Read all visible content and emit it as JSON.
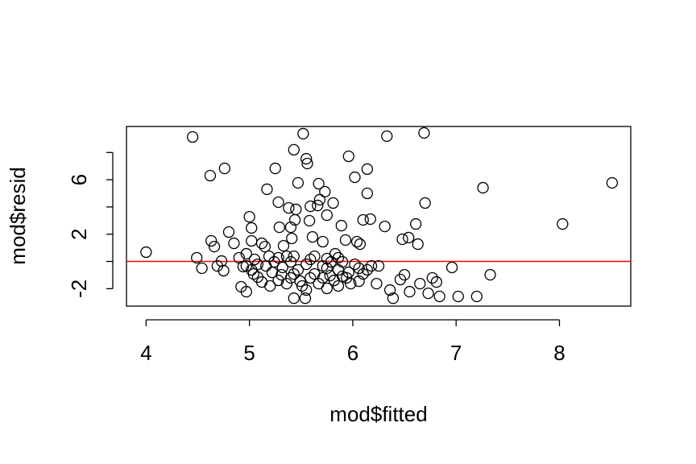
{
  "chart_data": {
    "type": "scatter",
    "x_label": "mod$fitted",
    "y_label": "mod$resid",
    "x": [
      4.0,
      4.45,
      4.62,
      4.76,
      4.49,
      4.54,
      4.63,
      4.66,
      4.69,
      4.73,
      4.8,
      4.75,
      4.85,
      4.9,
      4.94,
      4.92,
      4.97,
      5.0,
      5.02,
      5.02,
      4.97,
      5.02,
      5.05,
      5.08,
      5.12,
      5.15,
      5.17,
      5.19,
      5.22,
      5.25,
      5.28,
      5.29,
      5.31,
      5.33,
      5.36,
      5.38,
      5.4,
      5.41,
      5.43,
      5.43,
      5.44,
      5.45,
      5.47,
      5.49,
      5.52,
      5.54,
      5.55,
      5.56,
      5.58,
      5.59,
      5.61,
      5.63,
      5.66,
      5.67,
      5.68,
      5.71,
      5.73,
      5.75,
      5.75,
      5.78,
      5.81,
      5.83,
      5.86,
      5.89,
      5.93,
      5.96,
      5.96,
      6.02,
      6.04,
      6.07,
      6.1,
      6.14,
      6.14,
      6.17,
      6.18,
      6.23,
      6.25,
      6.31,
      6.33,
      6.36,
      6.39,
      6.46,
      6.5,
      6.48,
      6.54,
      6.55,
      6.61,
      6.63,
      6.65,
      6.69,
      6.7,
      6.73,
      6.77,
      6.81,
      6.84,
      6.96,
      7.02,
      7.2,
      7.26,
      7.33,
      8.03,
      8.51,
      5.08,
      5.16,
      5.24,
      5.32,
      5.4,
      5.47,
      5.55,
      5.63,
      5.71,
      5.79,
      5.86,
      5.94,
      6.02,
      6.1,
      5.12,
      5.2,
      5.28,
      5.36,
      5.43,
      5.51,
      5.59,
      5.67,
      5.75,
      5.82,
      5.9,
      5.98,
      6.06,
      6.14,
      5.04,
      4.97,
      5.28,
      5.43,
      5.59,
      5.75,
      5.9,
      6.06,
      5.4,
      5.55,
      5.71,
      5.86
    ],
    "y": [
      0.68,
      9.14,
      6.3,
      6.83,
      0.27,
      -0.5,
      1.51,
      1.09,
      -0.33,
      0.03,
      2.16,
      -0.68,
      1.33,
      0.27,
      -0.38,
      -1.86,
      -2.22,
      3.28,
      2.46,
      1.51,
      0.56,
      -0.62,
      0.15,
      -1.15,
      1.33,
      1.09,
      5.3,
      0.38,
      -0.8,
      6.83,
      4.35,
      2.51,
      -0.98,
      1.15,
      0.38,
      3.93,
      2.51,
      1.69,
      8.2,
      -2.7,
      3.05,
      3.82,
      5.77,
      -1.45,
      9.38,
      -2.7,
      7.54,
      7.19,
      2.99,
      4.05,
      1.8,
      0.38,
      4.11,
      5.71,
      4.53,
      1.45,
      5.12,
      3.4,
      0.21,
      -1.04,
      4.29,
      0.56,
      -1.8,
      2.63,
      1.57,
      7.72,
      -0.8,
      6.18,
      1.45,
      1.27,
      3.05,
      5.0,
      6.78,
      3.11,
      -0.33,
      -1.63,
      -0.33,
      2.57,
      9.2,
      -2.1,
      -2.7,
      -1.33,
      -0.98,
      1.63,
      1.75,
      -2.22,
      2.75,
      1.27,
      -1.63,
      9.44,
      4.29,
      -2.34,
      -1.21,
      -1.51,
      -2.57,
      -0.44,
      -2.57,
      -2.57,
      5.41,
      -0.98,
      2.75,
      5.77,
      -0.21,
      -0.33,
      -0.03,
      -0.44,
      -0.03,
      -0.62,
      -0.21,
      -0.92,
      -0.33,
      -0.03,
      -0.62,
      -1.21,
      -0.21,
      -0.92,
      -1.51,
      -1.8,
      -1.39,
      -1.63,
      -0.92,
      -1.8,
      -1.21,
      -1.63,
      -1.98,
      -1.39,
      -1.09,
      -1.63,
      -1.45,
      -0.62,
      -0.92,
      -0.33,
      0.27,
      0.38,
      0.15,
      -0.5,
      -0.03,
      -0.5,
      -1.21,
      -2.1,
      -1.21,
      0.27
    ],
    "color": "#000000",
    "xlim": [
      3.81,
      8.69
    ],
    "ylim": [
      -3.28,
      9.91
    ],
    "xticks": [
      4,
      5,
      6,
      7,
      8
    ],
    "yticks": [
      -2,
      2,
      6
    ],
    "yticks_unlabeled": [
      0,
      4,
      8
    ],
    "hline": {
      "value": 0,
      "color": "#ff0000"
    }
  }
}
